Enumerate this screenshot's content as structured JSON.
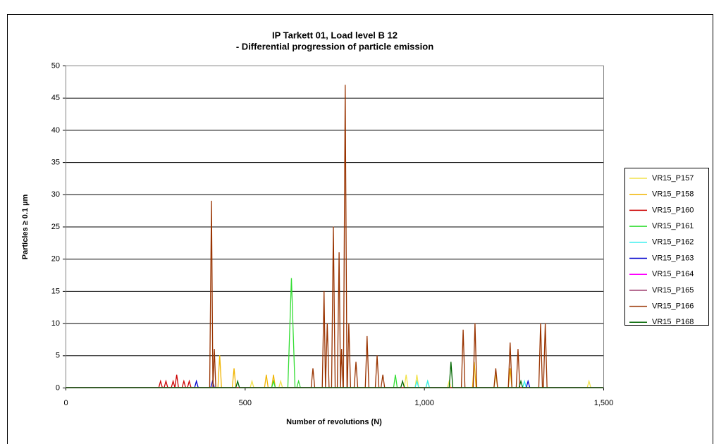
{
  "chart_data": {
    "type": "line",
    "title": "IP Tarkett 01, Load level B 12",
    "subtitle": "- Differential progression of particle emission",
    "x_label": "Number of revolutions (N)",
    "y_label": "Particles ≥ 0.1 µm",
    "xlim": [
      0,
      1500
    ],
    "xticks": [
      0,
      500,
      {
        "value": 1000,
        "label": "1,000"
      },
      {
        "value": 1500,
        "label": "1,500"
      }
    ],
    "ylim": [
      0,
      50
    ],
    "yticks": [
      0,
      5,
      10,
      15,
      20,
      25,
      30,
      35,
      40,
      45,
      50
    ],
    "grid": true,
    "legend": "right",
    "series": [
      {
        "name": "VR15_P157",
        "color": "#f2e24a",
        "x": [
          0,
          515,
          520,
          525,
          595,
          600,
          605,
          945,
          950,
          955,
          975,
          980,
          985,
          1065,
          1070,
          1075,
          1195,
          1200,
          1205,
          1455,
          1460,
          1465,
          1500
        ],
        "values": [
          0,
          0,
          1,
          0,
          0,
          1,
          0,
          0,
          2,
          0,
          0,
          2,
          0,
          0,
          1,
          0,
          0,
          2,
          0,
          0,
          1,
          0,
          0
        ]
      },
      {
        "name": "VR15_P158",
        "color": "#f0b400",
        "x": [
          0,
          425,
          430,
          435,
          465,
          470,
          475,
          555,
          560,
          565,
          575,
          580,
          585,
          1135,
          1140,
          1145,
          1235,
          1240,
          1245,
          1500
        ],
        "values": [
          0,
          0,
          5,
          0,
          0,
          3,
          0,
          0,
          2,
          0,
          0,
          2,
          0,
          0,
          4,
          0,
          0,
          3,
          0,
          0
        ]
      },
      {
        "name": "VR15_P160",
        "color": "#cc0000",
        "x": [
          0,
          260,
          265,
          270,
          275,
          280,
          285,
          295,
          300,
          305,
          305,
          310,
          315,
          325,
          330,
          335,
          340,
          345,
          350,
          1500
        ],
        "values": [
          0,
          0,
          1,
          0,
          0,
          1,
          0,
          0,
          1,
          0,
          0,
          2,
          0,
          0,
          1,
          0,
          0,
          1,
          0,
          0
        ]
      },
      {
        "name": "VR15_P161",
        "color": "#33dd33",
        "x": [
          0,
          575,
          580,
          585,
          620,
          630,
          640,
          645,
          650,
          655,
          915,
          920,
          925,
          1005,
          1010,
          1015,
          1500
        ],
        "values": [
          0,
          0,
          1,
          0,
          0,
          17,
          0,
          0,
          1,
          0,
          0,
          2,
          0,
          0,
          1,
          0,
          0
        ]
      },
      {
        "name": "VR15_P162",
        "color": "#33eeee",
        "x": [
          0,
          975,
          980,
          985,
          1005,
          1010,
          1015,
          1275,
          1280,
          1285,
          1500
        ],
        "values": [
          0,
          0,
          1,
          0,
          0,
          1,
          0,
          0,
          1,
          0,
          0
        ]
      },
      {
        "name": "VR15_P163",
        "color": "#0000cc",
        "x": [
          0,
          360,
          365,
          370,
          405,
          410,
          415,
          1285,
          1290,
          1295,
          1500
        ],
        "values": [
          0,
          0,
          1,
          0,
          0,
          1,
          0,
          0,
          1,
          0,
          0
        ]
      },
      {
        "name": "VR15_P164",
        "color": "#ff00ff",
        "x": [
          0,
          1500
        ],
        "values": [
          0,
          0
        ]
      },
      {
        "name": "VR15_P165",
        "color": "#993366",
        "x": [
          0,
          1500
        ],
        "values": [
          0,
          0
        ]
      },
      {
        "name": "VR15_P166",
        "color": "#993300",
        "x": [
          0,
          402,
          407,
          411,
          411,
          415,
          419,
          685,
          690,
          695,
          716,
          721,
          725,
          725,
          730,
          735,
          742,
          747,
          752,
          758,
          763,
          767,
          767,
          770,
          774,
          775,
          780,
          785,
          786,
          790,
          795,
          805,
          810,
          815,
          836,
          841,
          846,
          864,
          869,
          874,
          880,
          885,
          890,
          1104,
          1109,
          1114,
          1137,
          1142,
          1147,
          1195,
          1200,
          1205,
          1235,
          1240,
          1245,
          1257,
          1262,
          1267,
          1320,
          1325,
          1330,
          1333,
          1338,
          1343,
          1500
        ],
        "values": [
          0,
          0,
          29,
          0,
          0,
          6,
          0,
          0,
          3,
          0,
          0,
          15,
          0,
          0,
          10,
          0,
          0,
          25,
          0,
          0,
          21,
          0,
          0,
          6,
          0,
          0,
          47,
          0,
          0,
          10,
          0,
          0,
          4,
          0,
          0,
          8,
          0,
          0,
          5,
          0,
          0,
          2,
          0,
          0,
          9,
          0,
          0,
          10,
          0,
          0,
          3,
          0,
          0,
          7,
          0,
          0,
          6,
          0,
          0,
          10,
          0,
          0,
          10,
          0,
          0
        ]
      },
      {
        "name": "VR15_P168",
        "color": "#006600",
        "x": [
          0,
          475,
          480,
          485,
          935,
          940,
          945,
          1070,
          1075,
          1080,
          1265,
          1270,
          1275,
          1500
        ],
        "values": [
          0,
          0,
          1,
          0,
          0,
          1,
          0,
          0,
          4,
          0,
          0,
          1,
          0,
          0
        ]
      }
    ]
  }
}
